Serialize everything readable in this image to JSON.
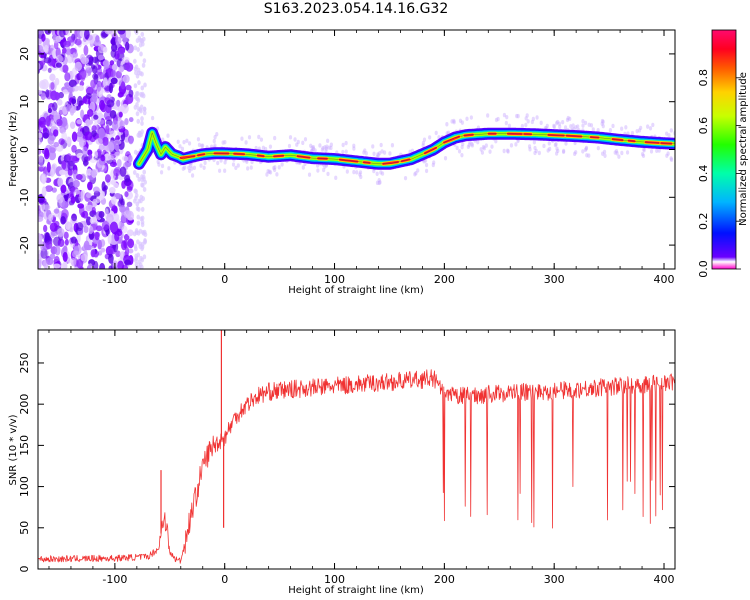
{
  "title": "S163.2023.054.14.16.G32",
  "chart_data": [
    {
      "type": "heatmap",
      "xlabel": "Height of straight line (km)",
      "ylabel": "Frequency (Hz)",
      "xlim": [
        -170,
        410
      ],
      "ylim": [
        -25,
        25
      ],
      "x_ticks": [
        "-100",
        "0",
        "100",
        "200",
        "300",
        "400"
      ],
      "y_ticks": [
        "-20",
        "-10",
        "0",
        "10",
        "20"
      ],
      "colorbar": {
        "label": "Normalized spectral amplitude",
        "range": [
          0,
          1
        ],
        "ticks": [
          "0.0",
          "0.2",
          "0.4",
          "0.6",
          "0.8"
        ],
        "colormap": "gist_rainbow"
      },
      "ridge": {
        "x": [
          -78,
          -70,
          -66,
          -62,
          -58,
          -54,
          -48,
          -42,
          -38,
          -30,
          -20,
          -10,
          0,
          20,
          40,
          60,
          80,
          100,
          120,
          140,
          150,
          160,
          170,
          180,
          190,
          200,
          210,
          220,
          240,
          260,
          280,
          300,
          320,
          340,
          360,
          380,
          400,
          410
        ],
        "y": [
          -3,
          0,
          3.5,
          1,
          -1,
          0.5,
          -1,
          -1.5,
          -2,
          -1.5,
          -1,
          -0.8,
          -0.8,
          -1,
          -1.5,
          -1.2,
          -1.8,
          -2,
          -2.5,
          -3,
          -3,
          -2.5,
          -2,
          -1,
          0,
          1.5,
          2.5,
          3,
          3.3,
          3.3,
          3.2,
          3,
          2.8,
          2.5,
          2,
          1.6,
          1.3,
          1.2
        ]
      }
    },
    {
      "type": "line",
      "xlabel": "Height of straight line (km)",
      "ylabel": "SNR (10 * v/v)",
      "xlim": [
        -170,
        410
      ],
      "ylim": [
        0,
        290
      ],
      "x_ticks": [
        "-100",
        "0",
        "100",
        "200",
        "300",
        "400"
      ],
      "y_ticks": [
        "0",
        "50",
        "100",
        "150",
        "200",
        "250"
      ],
      "series": [
        {
          "color": "#f03232",
          "baseline": {
            "x": [
              -170,
              -100,
              -70,
              -60,
              -55,
              -50,
              -45,
              -40,
              -35,
              -30,
              -25,
              -20,
              -15,
              -10,
              -5,
              0,
              10,
              20,
              30,
              40,
              60,
              80,
              100,
              120,
              140,
              160,
              180,
              190,
              200,
              220,
              240,
              260,
              280,
              300,
              320,
              340,
              360,
              380,
              400,
              410
            ],
            "y": [
              12,
              13,
              15,
              25,
              70,
              20,
              12,
              10,
              40,
              70,
              95,
              125,
              140,
              150,
              155,
              160,
              185,
              200,
              210,
              215,
              218,
              220,
              222,
              224,
              226,
              228,
              230,
              232,
              210,
              210,
              212,
              214,
              215,
              216,
              218,
              220,
              222,
              224,
              226,
              226
            ]
          },
          "spikes": [
            {
              "x": -58,
              "y": 120
            },
            {
              "x": -3,
              "y": 290
            },
            {
              "x": -1,
              "y": 50
            }
          ],
          "dropout_range": [
            188,
            410
          ],
          "dropout_min": 45
        }
      ]
    }
  ]
}
